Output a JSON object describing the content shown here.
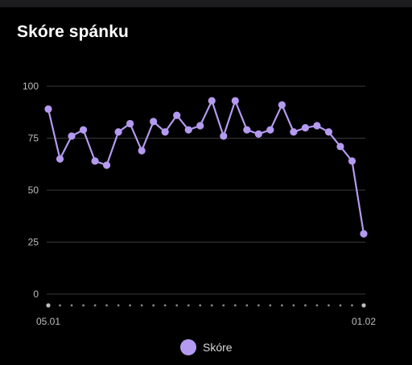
{
  "card": {
    "title": "Skóre spánku"
  },
  "colors": {
    "background": "#000000",
    "series": "#b49af0",
    "grid": "#3a3a3a",
    "axis_text": "#bdbdbd",
    "dots": "#8a8a8a"
  },
  "chart_data": {
    "type": "line",
    "title": "",
    "xlabel": "",
    "ylabel": "",
    "ylim": [
      0,
      100
    ],
    "y_ticks": [
      0,
      25,
      50,
      75,
      100
    ],
    "x_tick_labels": [
      "05.01",
      "01.02"
    ],
    "x_dot_count": 28,
    "grid": true,
    "legend_position": "bottom-center",
    "series": [
      {
        "name": "Skóre",
        "color": "#b49af0",
        "values": [
          89,
          65,
          76,
          79,
          64,
          62,
          78,
          82,
          69,
          83,
          78,
          86,
          79,
          81,
          93,
          76,
          93,
          79,
          77,
          79,
          91,
          78,
          80,
          81,
          78,
          71,
          64,
          29
        ]
      }
    ]
  }
}
